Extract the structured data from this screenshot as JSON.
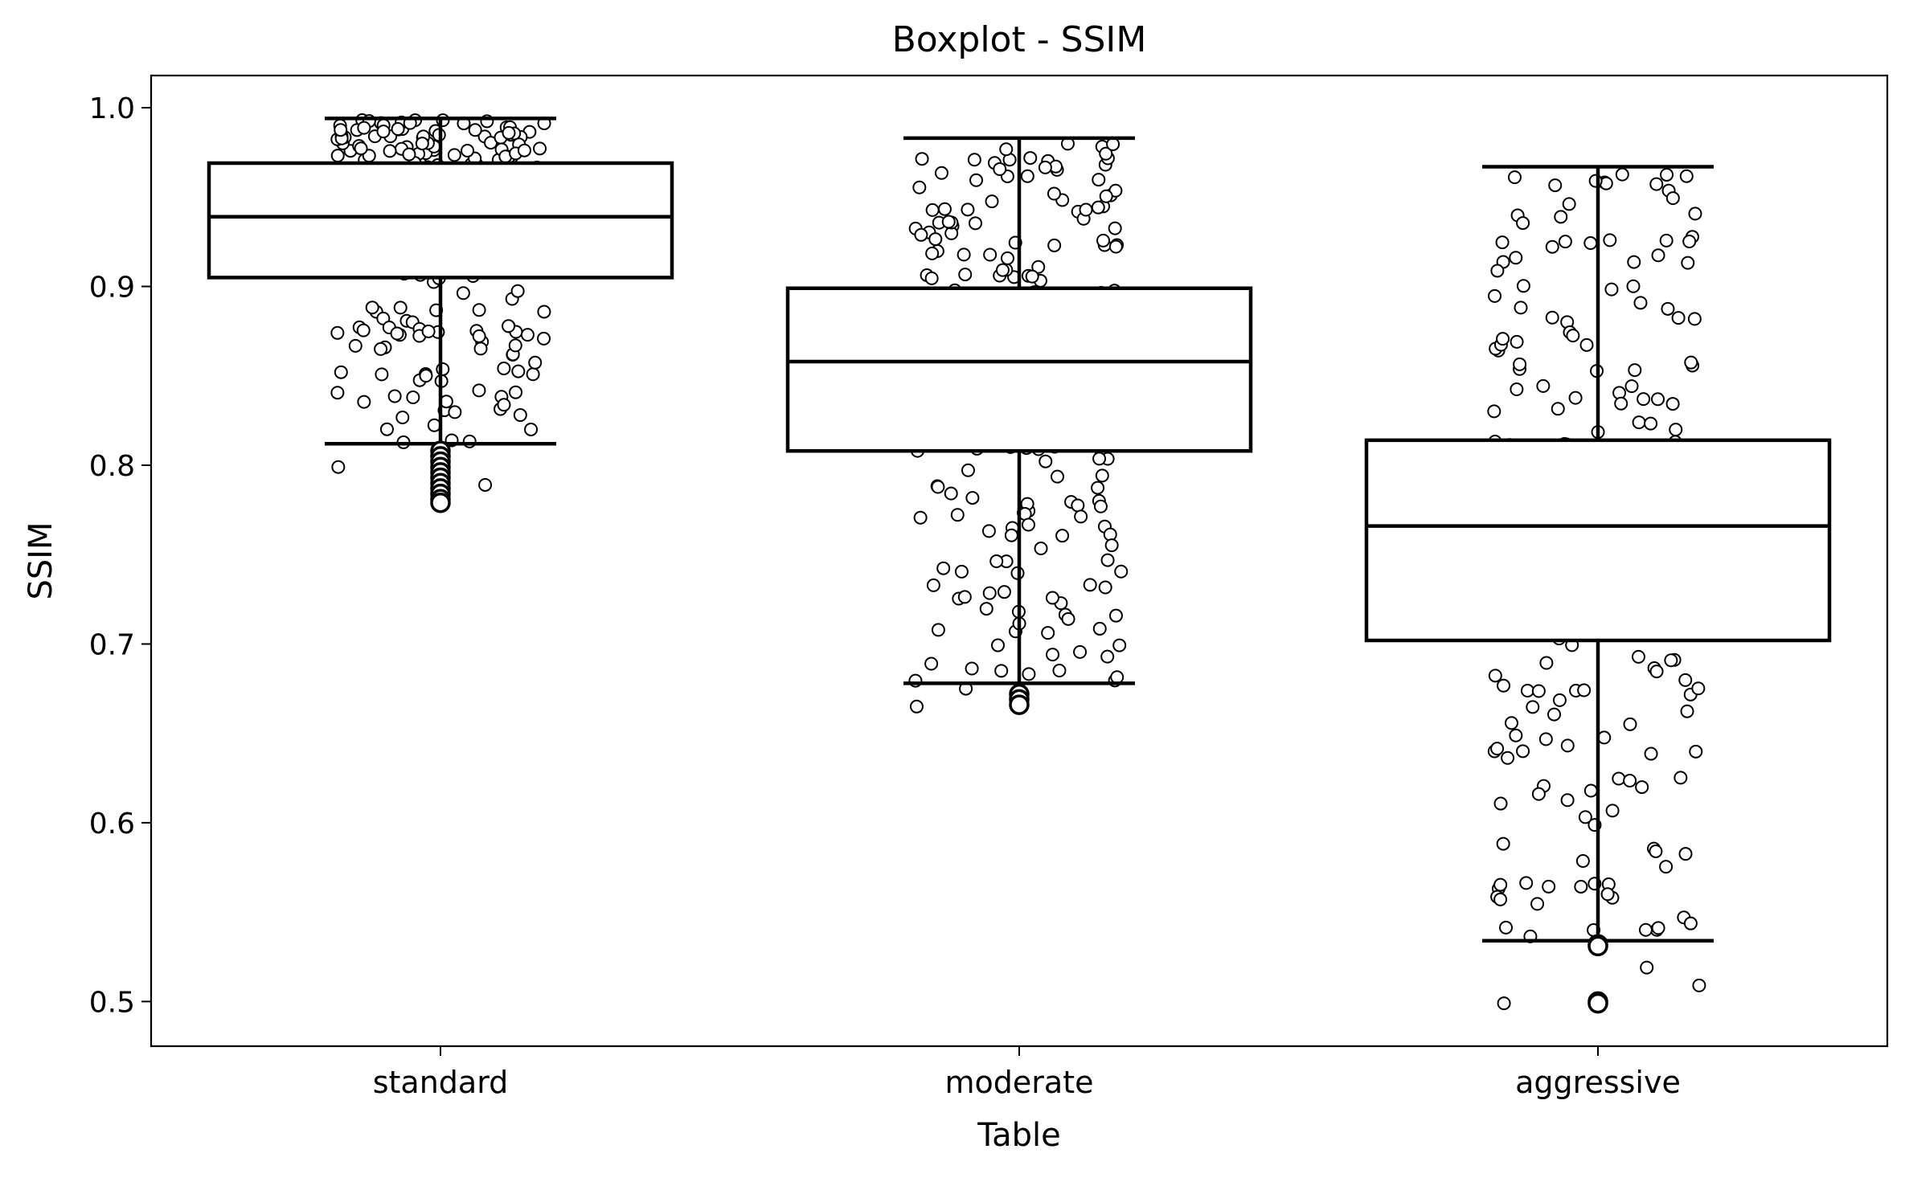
{
  "chart_data": {
    "type": "box",
    "title": "Boxplot - SSIM",
    "xlabel": "Table",
    "ylabel": "SSIM",
    "categories": [
      "standard",
      "moderate",
      "aggressive"
    ],
    "ylim": [
      0.475,
      1.018
    ],
    "yticks": [
      0.5,
      0.6,
      0.7,
      0.8,
      0.9,
      1.0
    ],
    "ytick_labels": [
      "0.5",
      "0.6",
      "0.7",
      "0.8",
      "0.9",
      "1.0"
    ],
    "grid": false,
    "legend": "none",
    "boxes": [
      {
        "category": "standard",
        "whisker_low": 0.812,
        "q1": 0.905,
        "median": 0.939,
        "q3": 0.969,
        "whisker_high": 0.994,
        "outliers": [
          0.808,
          0.805,
          0.802,
          0.799,
          0.796,
          0.793,
          0.79,
          0.787,
          0.784,
          0.781,
          0.779
        ],
        "jitter_range": [
          0.779,
          0.994
        ]
      },
      {
        "category": "moderate",
        "whisker_low": 0.678,
        "q1": 0.808,
        "median": 0.858,
        "q3": 0.899,
        "whisker_high": 0.983,
        "outliers": [
          0.672,
          0.669,
          0.666
        ],
        "jitter_range": [
          0.665,
          0.983
        ]
      },
      {
        "category": "aggressive",
        "whisker_low": 0.534,
        "q1": 0.702,
        "median": 0.766,
        "q3": 0.814,
        "whisker_high": 0.967,
        "outliers": [
          0.532,
          0.531,
          0.5,
          0.499
        ],
        "jitter_range": [
          0.499,
          0.967
        ]
      }
    ]
  }
}
